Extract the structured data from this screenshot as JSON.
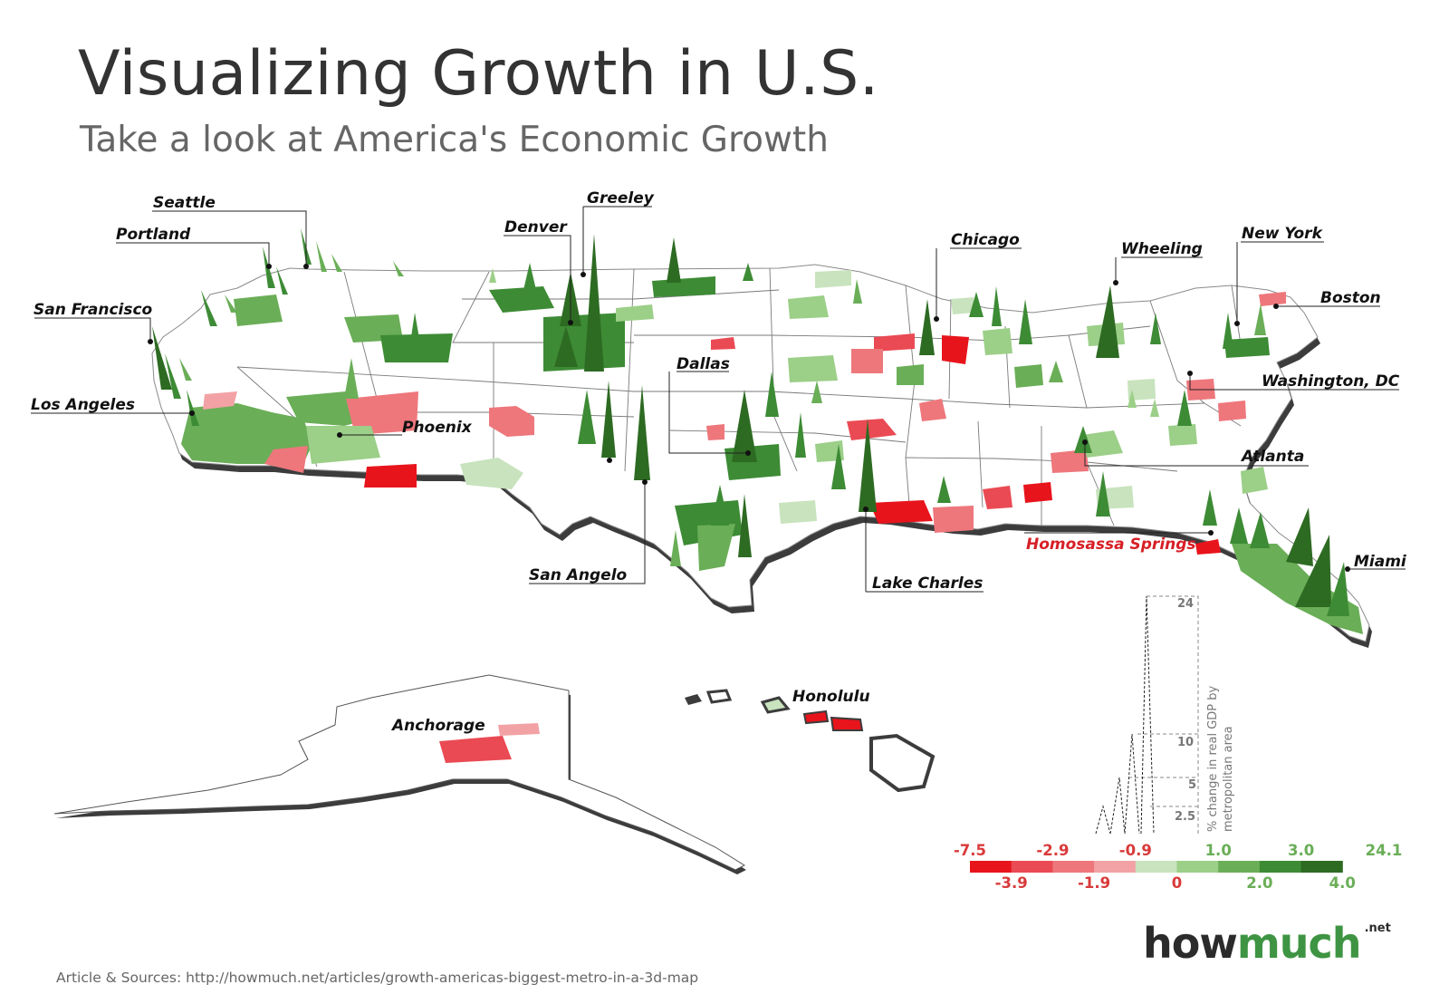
{
  "title": "Visualizing Growth in U.S.",
  "subtitle": "Take a look at America's Economic Growth",
  "source": "Article & Sources: http://howmuch.net/articles/growth-americas-biggest-metro-in-a-3d-map",
  "brand": {
    "part1": "how",
    "part2": "much",
    "tld": ".net"
  },
  "colors": {
    "red": [
      "#e8141c",
      "#ea4a53",
      "#ee777c",
      "#f2a2a5"
    ],
    "green": [
      "#c8e3bd",
      "#9ccf88",
      "#6aae57",
      "#3d8b35",
      "#2d6b22"
    ],
    "highlight_label": "#d71f26",
    "neg_label": "#d93a3a",
    "pos_label": "#6aae57"
  },
  "cities": [
    {
      "name": "Seattle"
    },
    {
      "name": "Portland"
    },
    {
      "name": "San Francisco"
    },
    {
      "name": "Los Angeles"
    },
    {
      "name": "Phoenix"
    },
    {
      "name": "Denver"
    },
    {
      "name": "Greeley"
    },
    {
      "name": "Dallas"
    },
    {
      "name": "San Angelo"
    },
    {
      "name": "Chicago"
    },
    {
      "name": "Lake Charles"
    },
    {
      "name": "Wheeling"
    },
    {
      "name": "New York"
    },
    {
      "name": "Boston"
    },
    {
      "name": "Washington, DC"
    },
    {
      "name": "Atlanta"
    },
    {
      "name": "Homosassa Springs",
      "highlight": true
    },
    {
      "name": "Miami"
    },
    {
      "name": "Anchorage"
    },
    {
      "name": "Honolulu"
    }
  ],
  "legend": {
    "top": [
      "-7.5",
      "-2.9",
      "-0.9",
      "1.0",
      "3.0",
      "24.1"
    ],
    "bottom": [
      "-3.9",
      "-1.9",
      "0",
      "2.0",
      "4.0"
    ]
  },
  "height_scale": {
    "label_line1": "% change in real GDP by",
    "label_line2": "metropolitan area",
    "values": [
      "24",
      "10",
      "5",
      "2.5"
    ]
  }
}
